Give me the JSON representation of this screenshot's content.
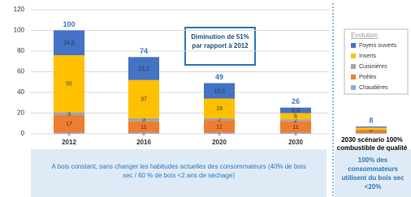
{
  "chart_data": {
    "type": "bar",
    "stacked": true,
    "categories": [
      "2012",
      "2016",
      "2020",
      "2030",
      "2030 scénario 100% combustible de qualité"
    ],
    "series": [
      {
        "name": "Chaudières",
        "color": "#8faadc",
        "values": [
          1,
          1,
          1,
          1,
          0.5
        ],
        "value_labels": [
          "1",
          "1",
          "1",
          "1",
          null
        ]
      },
      {
        "name": "Poêles",
        "color": "#ed7d31",
        "values": [
          17,
          11,
          12,
          11,
          3
        ],
        "value_labels": [
          "17",
          "11",
          "12",
          "11",
          null
        ]
      },
      {
        "name": "Cuisinières",
        "color": "#a5a5a5",
        "values": [
          3,
          3,
          2,
          2,
          0.5
        ],
        "value_labels": [
          "3",
          "3",
          "2",
          "2",
          "0"
        ]
      },
      {
        "name": "Inserts",
        "color": "#ffc000",
        "values": [
          55,
          37,
          19,
          6,
          2
        ],
        "value_labels": [
          "55",
          "37",
          "19",
          "6",
          null
        ]
      },
      {
        "name": "Foyers ouverts",
        "color": "#4472c4",
        "values": [
          24,
          22.2,
          15,
          5.3,
          1
        ],
        "value_labels": [
          "24,0",
          "22,2",
          "15,0",
          "5,3",
          null
        ]
      }
    ],
    "totals": [
      100,
      74,
      49,
      26,
      8
    ],
    "ylim": [
      0,
      120
    ],
    "yticks": [
      0,
      20,
      40,
      60,
      80,
      100,
      120
    ],
    "grid": true,
    "legend_title": "Evolution",
    "annotation": "Diminution de 51% par rapport à 2012",
    "footer_left": "A bois constant, sans changer les habitudes actuelles des consommateurs (40% de bois sec / 60 % de bois <2 ans de séchage)",
    "footer_right": "100% des consommateurs utilisent du bois sec <20%"
  }
}
